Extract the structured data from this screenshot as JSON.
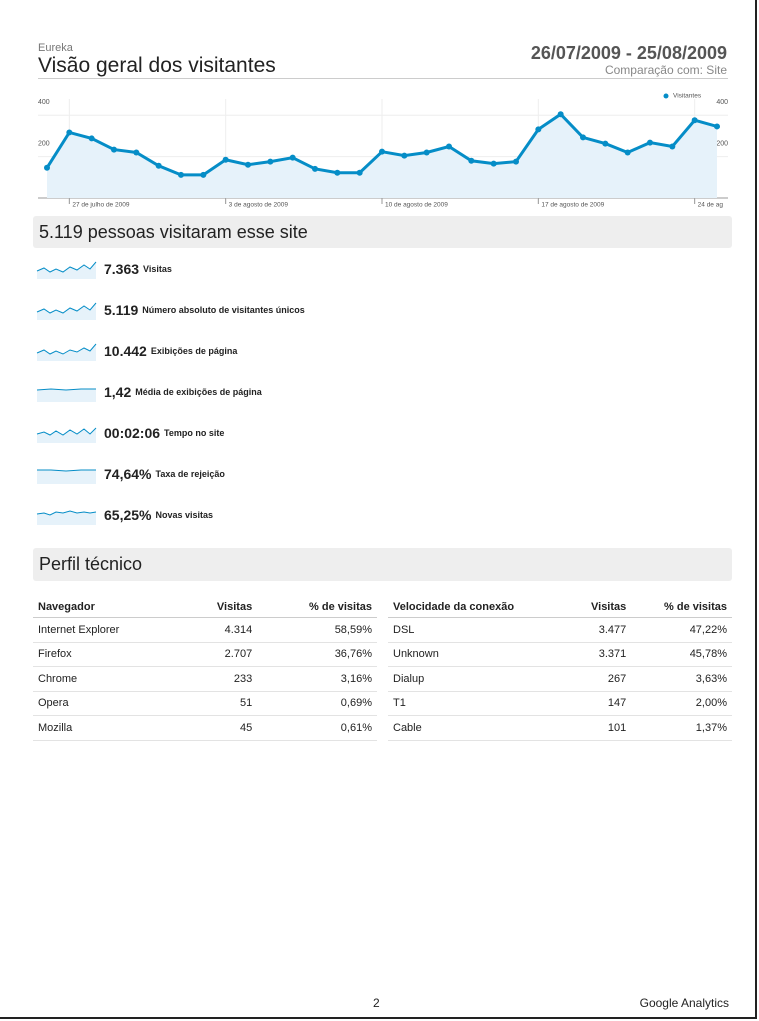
{
  "header": {
    "site": "Eureka",
    "title": "Visão geral dos visitantes",
    "date_range": "26/07/2009 - 25/08/2009",
    "comparison": "Comparação com: Site"
  },
  "chart_data": {
    "type": "line",
    "categories": [
      null,
      "27 de julho de 2009",
      null,
      null,
      null,
      null,
      null,
      null,
      "3 de agosto de 2009",
      null,
      null,
      null,
      null,
      null,
      null,
      "10 de agosto de 2009",
      null,
      null,
      null,
      null,
      null,
      null,
      "17 de agosto de 2009",
      null,
      null,
      null,
      null,
      null,
      null,
      "24 de ag",
      null
    ],
    "series": [
      {
        "name": "Visitantes",
        "color": "#058dc7",
        "values": [
          146,
          317,
          288,
          234,
          220,
          156,
          112,
          112,
          185,
          161,
          176,
          195,
          141,
          122,
          122,
          224,
          205,
          220,
          249,
          180,
          166,
          176,
          332,
          405,
          293,
          263,
          220,
          268,
          249,
          376,
          346
        ]
      }
    ],
    "ylim": [
      0,
      440
    ],
    "yticks": [
      200,
      400
    ],
    "y2lim": [
      0,
      440
    ],
    "y2ticks": [
      200,
      400
    ],
    "grid": true,
    "legend": "top-right"
  },
  "summary": {
    "title": "5.119 pessoas visitaram esse site",
    "metrics": [
      {
        "value": "7.363",
        "label": "Visitas"
      },
      {
        "value": "5.119",
        "label": "Número absoluto de visitantes únicos"
      },
      {
        "value": "10.442",
        "label": "Exibições de página"
      },
      {
        "value": "1,42",
        "label": "Média de exibições de página"
      },
      {
        "value": "00:02:06",
        "label": "Tempo no site"
      },
      {
        "value": "74,64%",
        "label": "Taxa de rejeição"
      },
      {
        "value": "65,25%",
        "label": "Novas visitas"
      }
    ]
  },
  "profile": {
    "title": "Perfil técnico",
    "browsers": {
      "columns": [
        "Navegador",
        "Visitas",
        "% de visitas"
      ],
      "rows": [
        [
          "Internet Explorer",
          "4.314",
          "58,59%"
        ],
        [
          "Firefox",
          "2.707",
          "36,76%"
        ],
        [
          "Chrome",
          "233",
          "3,16%"
        ],
        [
          "Opera",
          "51",
          "0,69%"
        ],
        [
          "Mozilla",
          "45",
          "0,61%"
        ]
      ]
    },
    "connections": {
      "columns": [
        "Velocidade da conexão",
        "Visitas",
        "% de visitas"
      ],
      "rows": [
        [
          "DSL",
          "3.477",
          "47,22%"
        ],
        [
          "Unknown",
          "3.371",
          "45,78%"
        ],
        [
          "Dialup",
          "267",
          "3,63%"
        ],
        [
          "T1",
          "147",
          "2,00%"
        ],
        [
          "Cable",
          "101",
          "1,37%"
        ]
      ]
    }
  },
  "footer": {
    "page": "2",
    "brand": "Google Analytics"
  }
}
